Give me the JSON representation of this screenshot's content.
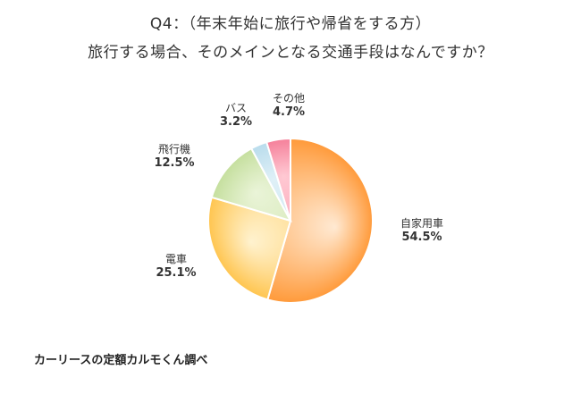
{
  "chart_data": {
    "type": "pie",
    "title": [
      "Q4：（年末年始に旅行や帰省をする方）",
      "旅行する場合、そのメインとなる交通手段はなんですか？"
    ],
    "slices": [
      {
        "label": "自家用車",
        "value": 54.5,
        "value_label": "54.5%",
        "color_start": "#ffe9d2",
        "color_end": "#ff9a3a"
      },
      {
        "label": "電車",
        "value": 25.1,
        "value_label": "25.1%",
        "color_start": "#fff2cf",
        "color_end": "#ffc54f"
      },
      {
        "label": "飛行機",
        "value": 12.5,
        "value_label": "12.5%",
        "color_start": "#eaf4d8",
        "color_end": "#c5df9e"
      },
      {
        "label": "バス",
        "value": 3.2,
        "value_label": "3.2%",
        "color_start": "#dff0f7",
        "color_end": "#b9dcec"
      },
      {
        "label": "その他",
        "value": 4.7,
        "value_label": "4.7%",
        "color_start": "#ffc9d3",
        "color_end": "#f5809a"
      }
    ],
    "start_angle_deg": 0,
    "direction": "clockwise"
  },
  "source": "カーリースの定額カルモくん調べ"
}
